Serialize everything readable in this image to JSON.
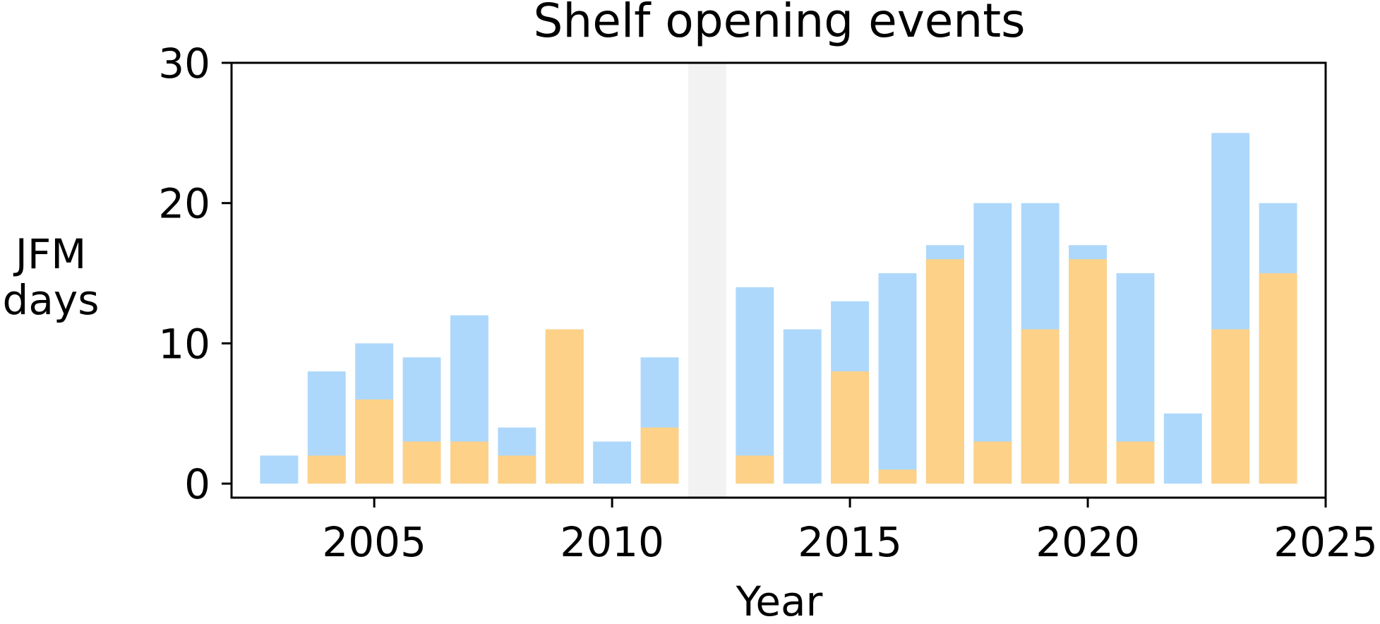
{
  "chart_data": {
    "type": "bar",
    "title": "Shelf opening events",
    "xlabel": "Year",
    "ylabel": [
      "JFM",
      "days"
    ],
    "xlim": [
      2002,
      2025
    ],
    "ylim": [
      -1,
      30
    ],
    "xticks": [
      2005,
      2010,
      2015,
      2020,
      2025
    ],
    "yticks": [
      0,
      10,
      20,
      30
    ],
    "grid": false,
    "legend": null,
    "shaded_span": {
      "x": [
        2011.6,
        2012.4
      ],
      "color": "#f2f2f2"
    },
    "bar_width": 0.8,
    "years": [
      2003,
      2004,
      2005,
      2006,
      2007,
      2008,
      2009,
      2010,
      2011,
      2013,
      2014,
      2015,
      2016,
      2017,
      2018,
      2019,
      2020,
      2021,
      2022,
      2023,
      2024
    ],
    "series": [
      {
        "color": "#add8fb",
        "values": [
          2,
          8,
          10,
          9,
          12,
          4,
          11,
          3,
          9,
          14,
          11,
          13,
          15,
          17,
          20,
          20,
          17,
          15,
          5,
          25,
          20
        ]
      },
      {
        "color": "#fdd188",
        "values": [
          0,
          2,
          6,
          3,
          3,
          2,
          11,
          0,
          4,
          2,
          0,
          8,
          1,
          16,
          3,
          11,
          16,
          3,
          0,
          11,
          15
        ]
      }
    ]
  }
}
